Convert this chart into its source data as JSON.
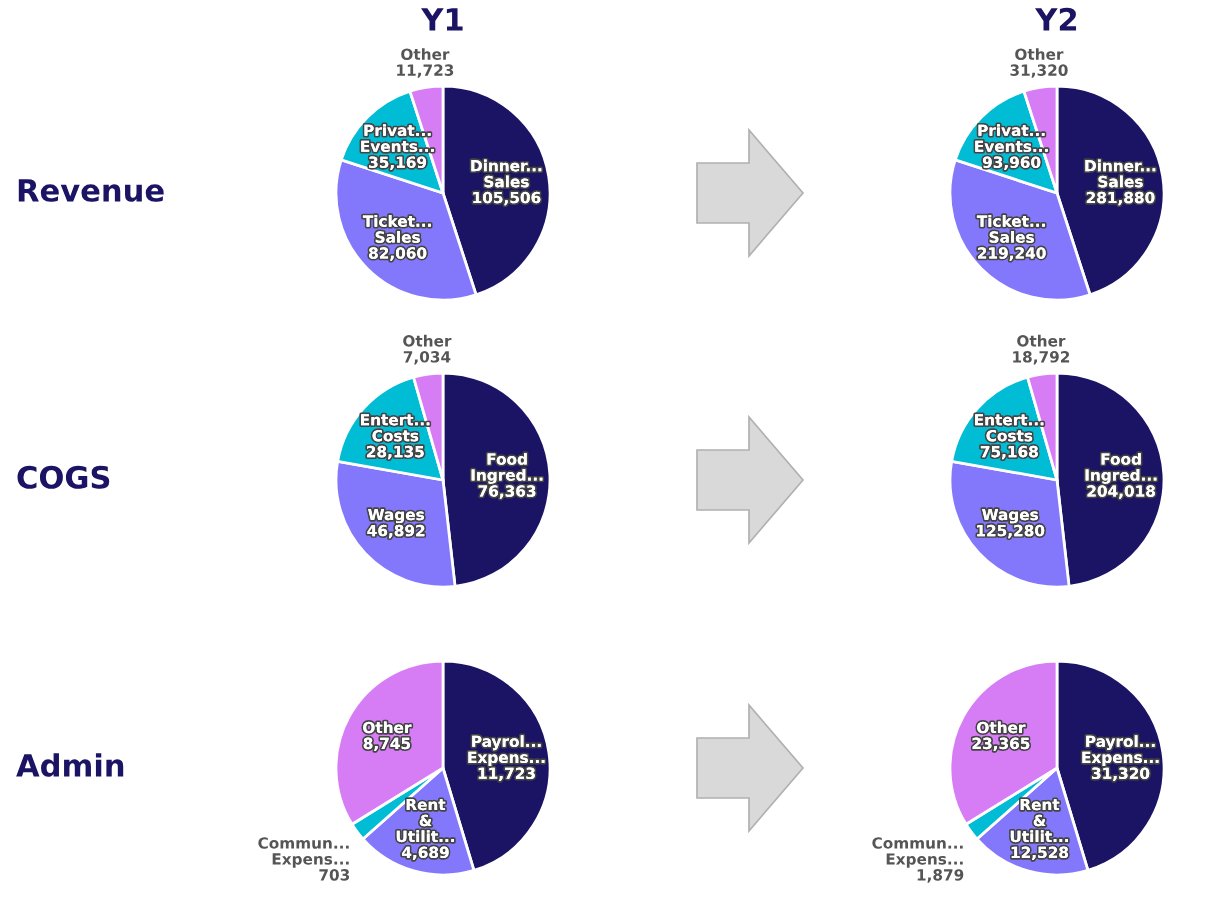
{
  "chart_data": [
    {
      "type": "pie",
      "title": "Y1",
      "ylabel": "Revenue",
      "categories": [
        "Dinner...\nSales",
        "Ticket...\nSales",
        "Privat...\nEvents...",
        "Other"
      ],
      "values": [
        105506,
        82060,
        35169,
        11723
      ],
      "value_labels": [
        "105,506",
        "82,060",
        "35,169",
        "11,723"
      ],
      "colors": [
        "#1b1464",
        "#8378fc",
        "#00bcd4",
        "#d67cf5"
      ]
    },
    {
      "type": "pie",
      "title": "Y2",
      "categories": [
        "Dinner...\nSales",
        "Ticket...\nSales",
        "Privat...\nEvents...",
        "Other"
      ],
      "values": [
        281880,
        219240,
        93960,
        31320
      ],
      "value_labels": [
        "281,880",
        "219,240",
        "93,960",
        "31,320"
      ],
      "colors": [
        "#1b1464",
        "#8378fc",
        "#00bcd4",
        "#d67cf5"
      ]
    },
    {
      "type": "pie",
      "ylabel": "COGS",
      "categories": [
        "Food\nIngred...",
        "Wages",
        "Entert...\nCosts",
        "Other"
      ],
      "values": [
        76363,
        46892,
        28135,
        7034
      ],
      "value_labels": [
        "76,363",
        "46,892",
        "28,135",
        "7,034"
      ],
      "colors": [
        "#1b1464",
        "#8378fc",
        "#00bcd4",
        "#d67cf5"
      ]
    },
    {
      "type": "pie",
      "categories": [
        "Food\nIngred...",
        "Wages",
        "Entert...\nCosts",
        "Other"
      ],
      "values": [
        204018,
        125280,
        75168,
        18792
      ],
      "value_labels": [
        "204,018",
        "125,280",
        "75,168",
        "18,792"
      ],
      "colors": [
        "#1b1464",
        "#8378fc",
        "#00bcd4",
        "#d67cf5"
      ]
    },
    {
      "type": "pie",
      "ylabel": "Admin",
      "categories": [
        "Payrol...\nExpens...",
        "Rent\n&\nUtilit...",
        "Commun...\nExpens...",
        "Other"
      ],
      "values": [
        11723,
        4689,
        703,
        8745
      ],
      "value_labels": [
        "11,723",
        "4,689",
        "703",
        "8,745"
      ],
      "colors": [
        "#1b1464",
        "#8378fc",
        "#00bcd4",
        "#d67cf5"
      ]
    },
    {
      "type": "pie",
      "categories": [
        "Payrol...\nExpens...",
        "Rent\n&\nUtilit...",
        "Commun...\nExpens...",
        "Other"
      ],
      "values": [
        31320,
        12528,
        1879,
        23365
      ],
      "value_labels": [
        "31,320",
        "12,528",
        "1,879",
        "23,365"
      ],
      "colors": [
        "#1b1464",
        "#8378fc",
        "#00bcd4",
        "#d67cf5"
      ]
    }
  ]
}
